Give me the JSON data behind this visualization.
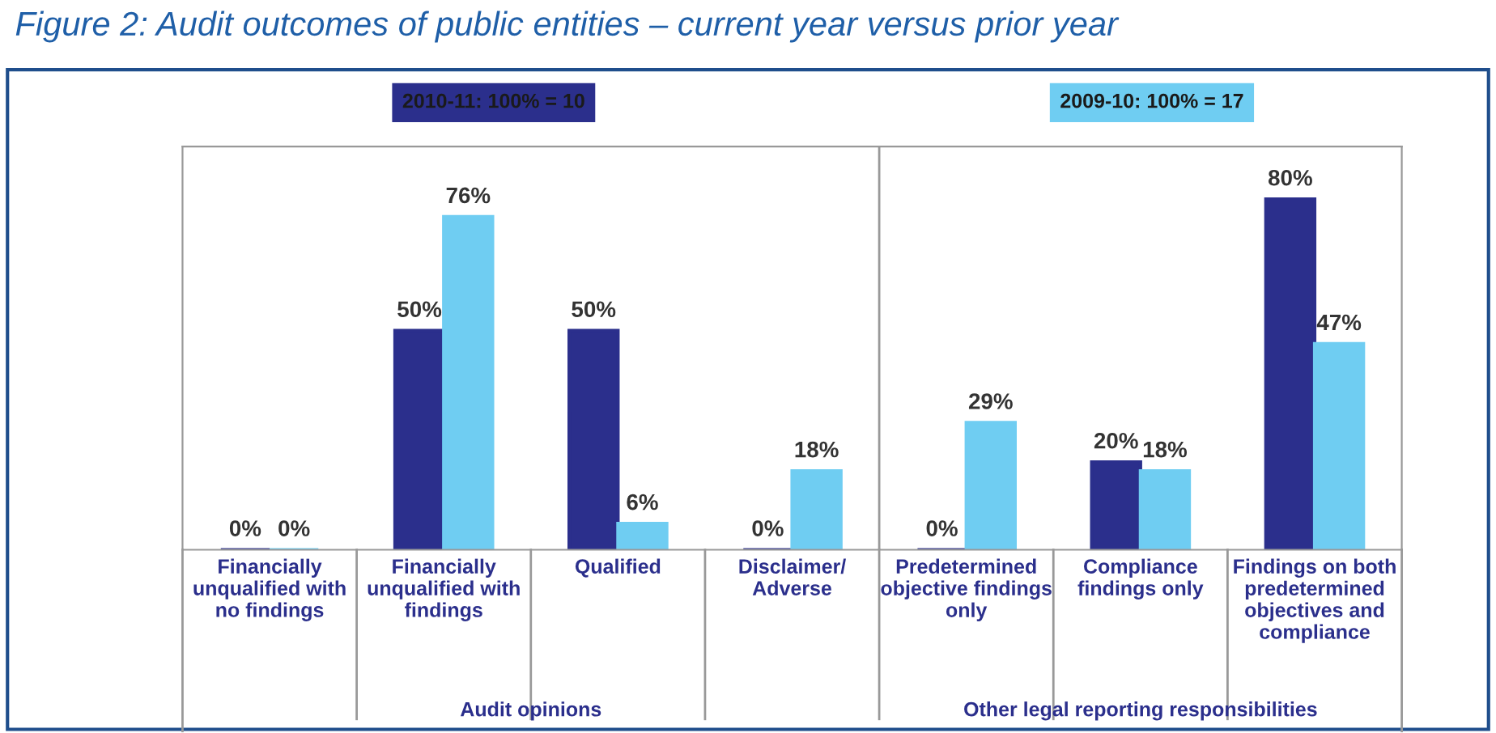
{
  "chart_data": {
    "type": "bar",
    "title": "Figure 2: Audit outcomes of public entities – current year versus prior year",
    "categories": [
      "Financially\nunqualified with\nno findings",
      "Financially\nunqualified with\nfindings",
      "Qualified",
      "Disclaimer/\nAdverse",
      "Predetermined\nobjective findings\nonly",
      "Compliance\nfindings only",
      "Findings on both\npredetermined\nobjectives and\ncompliance"
    ],
    "series": [
      {
        "name": "2010-11: 100% = 10",
        "color": "#2b2f8c",
        "values": [
          0,
          50,
          50,
          0,
          0,
          20,
          80
        ],
        "value_labels": [
          "0%",
          "50%",
          "50%",
          "0%",
          "0%",
          "20%",
          "80%"
        ]
      },
      {
        "name": "2009-10: 100% = 17",
        "color": "#6fcdf2",
        "values": [
          0,
          76,
          6,
          18,
          29,
          18,
          47
        ],
        "value_labels": [
          "0%",
          "76%",
          "6%",
          "18%",
          "29%",
          "18%",
          "47%"
        ]
      }
    ],
    "annotations": [
      {
        "text": "Audit opinions"
      },
      {
        "text": "Other legal reporting responsibilities"
      }
    ],
    "legend": "top",
    "grid": false
  }
}
